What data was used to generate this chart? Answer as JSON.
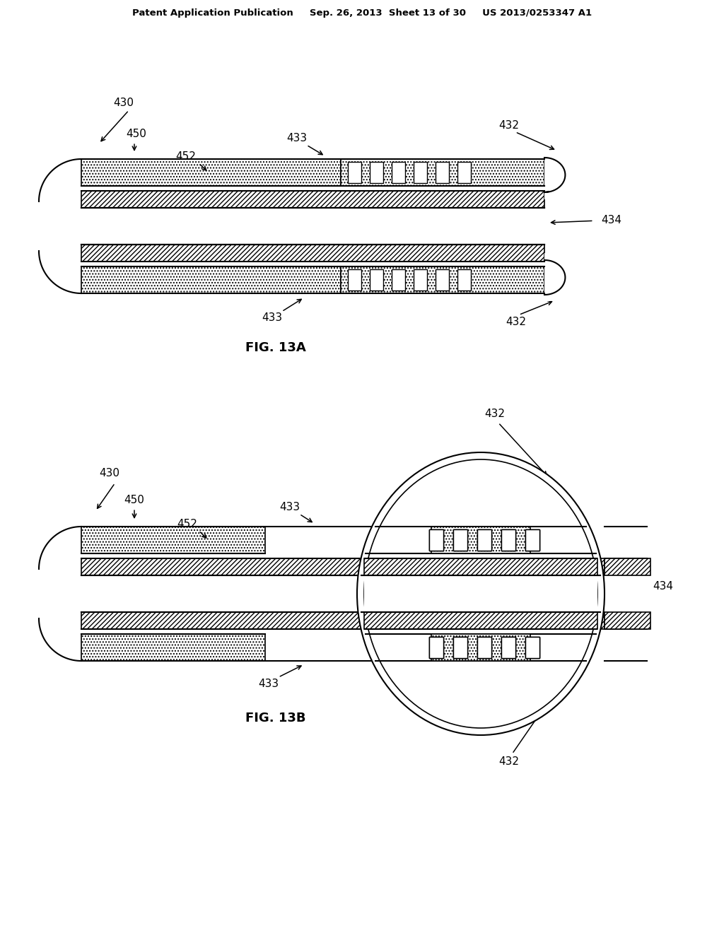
{
  "bg_color": "#ffffff",
  "line_color": "#000000",
  "header_text": "Patent Application Publication     Sep. 26, 2013  Sheet 13 of 30     US 2013/0253347 A1",
  "fig13a_label": "FIG. 13A",
  "fig13b_label": "FIG. 13B"
}
